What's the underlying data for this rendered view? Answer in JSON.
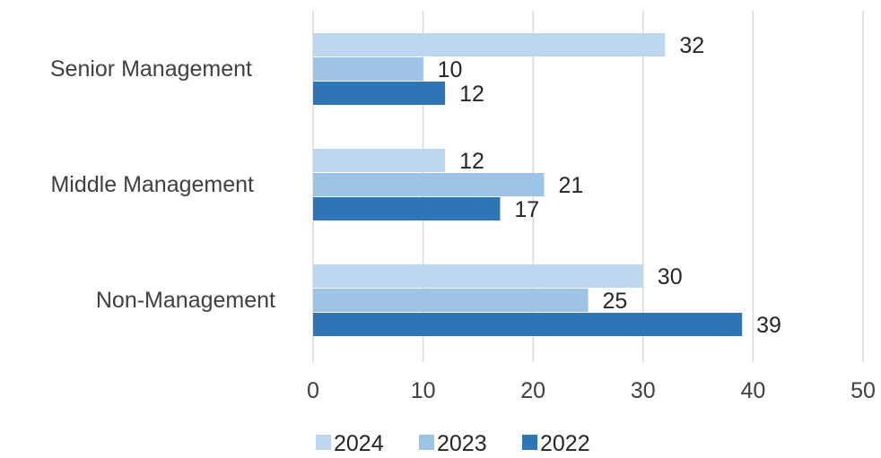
{
  "chart_data": {
    "type": "bar",
    "orientation": "horizontal",
    "categories": [
      "Senior Management",
      "Middle Management",
      "Non-Management"
    ],
    "series": [
      {
        "name": "2024",
        "color": "#bdd7ee",
        "values": [
          32,
          12,
          30
        ]
      },
      {
        "name": "2023",
        "color": "#9dc3e6",
        "values": [
          10,
          21,
          25
        ]
      },
      {
        "name": "2022",
        "color": "#2e75b6",
        "values": [
          12,
          17,
          39
        ]
      }
    ],
    "xlim": [
      0,
      50
    ],
    "xticks": [
      "0",
      "10",
      "20",
      "30",
      "40",
      "50"
    ],
    "grid": "vertical",
    "legend": "bottom",
    "data_labels": true
  }
}
